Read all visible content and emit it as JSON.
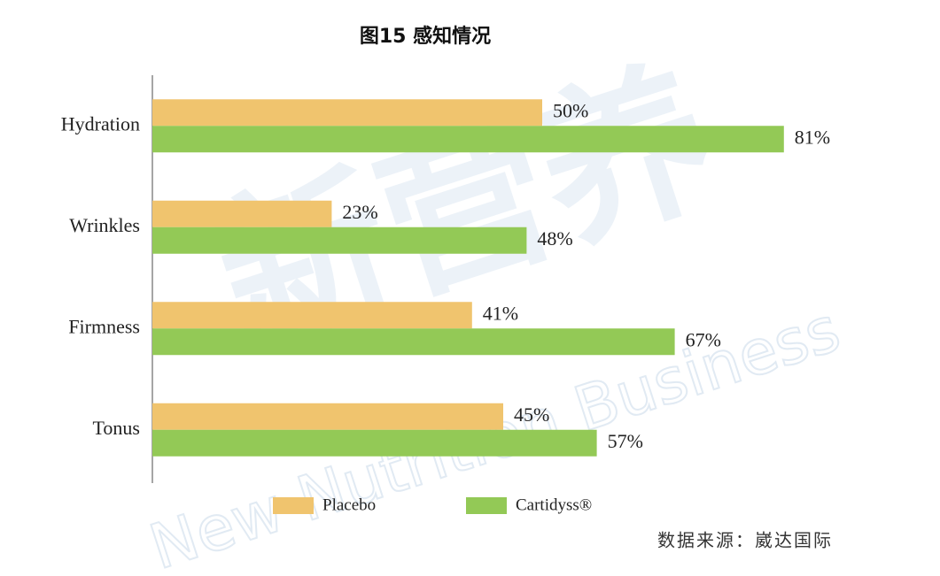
{
  "chart_data": {
    "type": "barh",
    "title": "图15 感知情况",
    "categories": [
      "Hydration",
      "Wrinkles",
      "Firmness",
      "Tonus"
    ],
    "series": [
      {
        "name": "Placebo",
        "color": "#f0c46e",
        "values": [
          50,
          23,
          41,
          45
        ],
        "value_labels": [
          "50%",
          "23%",
          "41%",
          "45%"
        ]
      },
      {
        "name": "Cartidyss®",
        "color": "#93c956",
        "values": [
          81,
          48,
          67,
          57
        ],
        "value_labels": [
          "81%",
          "48%",
          "67%",
          "57%"
        ]
      }
    ],
    "source": "数据来源：崴达国际",
    "watermark": [
      "新营养",
      "New Nutrition Business"
    ]
  }
}
